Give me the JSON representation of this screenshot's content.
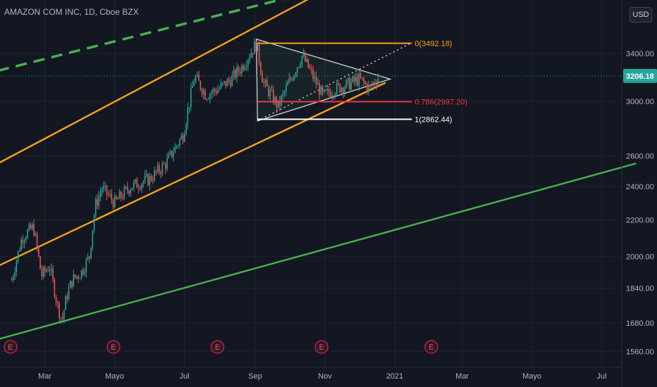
{
  "header": {
    "title": "AMAZON COM INC, 1D, Cboe BZX",
    "currency": "USD"
  },
  "price_axis": {
    "ticks": [
      "1560.00",
      "1680.00",
      "1840.00",
      "2000.00",
      "2200.00",
      "2400.00",
      "2600.00",
      "3000.00",
      "3400.00"
    ],
    "current_price_label": "3206.18"
  },
  "time_axis": {
    "ticks": [
      "Mar",
      "Mayo",
      "Jul",
      "Sep",
      "Nov",
      "2021",
      "Mar",
      "Mayo",
      "Jul"
    ]
  },
  "fib_levels": [
    {
      "label": "0(3492.18)",
      "price": 3492.18,
      "color": "#f7a21b"
    },
    {
      "label": "0.786(2997.20)",
      "price": 2997.2,
      "color": "#f23645"
    },
    {
      "label": "1(2862.44)",
      "price": 2862.44,
      "color": "#ffffff"
    }
  ],
  "earnings_markers": [
    "E",
    "E",
    "E",
    "E",
    "E"
  ],
  "colors": {
    "background": "#131722",
    "up_candle": "#26a69a",
    "down_candle": "#ef5350",
    "channel": "#f7a21b",
    "trendline_green": "#4caf50",
    "triangle": "#d1d4dc",
    "current_price": "#26a69a"
  },
  "chart_data": {
    "type": "candlestick",
    "title": "AMAZON COM INC, 1D, Cboe BZX",
    "y_scale": "log",
    "ylim": [
      1500,
      3900
    ],
    "x_range": [
      "2020-02-01",
      "2021-07-31"
    ],
    "current_price": 3206.18,
    "close_series": [
      {
        "date": "2020-02-01",
        "close": 1880
      },
      {
        "date": "2020-02-10",
        "close": 2100
      },
      {
        "date": "2020-02-20",
        "close": 2160
      },
      {
        "date": "2020-02-27",
        "close": 1900
      },
      {
        "date": "2020-03-05",
        "close": 1950
      },
      {
        "date": "2020-03-12",
        "close": 1760
      },
      {
        "date": "2020-03-16",
        "close": 1690
      },
      {
        "date": "2020-03-20",
        "close": 1800
      },
      {
        "date": "2020-03-25",
        "close": 1880
      },
      {
        "date": "2020-04-02",
        "close": 1920
      },
      {
        "date": "2020-04-09",
        "close": 2000
      },
      {
        "date": "2020-04-14",
        "close": 2280
      },
      {
        "date": "2020-04-20",
        "close": 2390
      },
      {
        "date": "2020-05-01",
        "close": 2300
      },
      {
        "date": "2020-05-15",
        "close": 2400
      },
      {
        "date": "2020-06-01",
        "close": 2450
      },
      {
        "date": "2020-06-15",
        "close": 2550
      },
      {
        "date": "2020-06-30",
        "close": 2750
      },
      {
        "date": "2020-07-10",
        "close": 3200
      },
      {
        "date": "2020-07-20",
        "close": 3050
      },
      {
        "date": "2020-07-31",
        "close": 3100
      },
      {
        "date": "2020-08-10",
        "close": 3170
      },
      {
        "date": "2020-08-20",
        "close": 3280
      },
      {
        "date": "2020-09-02",
        "close": 3490
      },
      {
        "date": "2020-09-08",
        "close": 3150
      },
      {
        "date": "2020-09-15",
        "close": 3050
      },
      {
        "date": "2020-09-21",
        "close": 2960
      },
      {
        "date": "2020-09-30",
        "close": 3140
      },
      {
        "date": "2020-10-12",
        "close": 3380
      },
      {
        "date": "2020-10-20",
        "close": 3230
      },
      {
        "date": "2020-10-30",
        "close": 3040
      },
      {
        "date": "2020-11-10",
        "close": 3100
      },
      {
        "date": "2020-11-20",
        "close": 3130
      },
      {
        "date": "2020-12-01",
        "close": 3180
      },
      {
        "date": "2020-12-10",
        "close": 3100
      },
      {
        "date": "2020-12-18",
        "close": 3206.18
      }
    ],
    "lines": [
      {
        "name": "upper channel",
        "color": "#f7a21b",
        "from": {
          "date": "2020-01-20",
          "price": 2550
        },
        "to": {
          "date": "2020-12-15",
          "price": 4300
        }
      },
      {
        "name": "lower channel",
        "color": "#f7a21b",
        "from": {
          "date": "2020-01-20",
          "price": 1950
        },
        "to": {
          "date": "2020-12-24",
          "price": 3150
        }
      },
      {
        "name": "dashed trend",
        "color": "#4caf50",
        "style": "dashed",
        "from": {
          "date": "2020-01-20",
          "price": 3250
        },
        "to": {
          "date": "2020-12-10",
          "price": 4150
        }
      },
      {
        "name": "long green trend",
        "color": "#4caf50",
        "from": {
          "date": "2020-01-20",
          "price": 1610
        },
        "to": {
          "date": "2021-07-31",
          "price": 2550
        }
      }
    ],
    "triangle": {
      "points": [
        {
          "date": "2020-09-02",
          "price": 3530
        },
        {
          "date": "2020-09-03",
          "price": 2850
        },
        {
          "date": "2020-12-28",
          "price": 3180
        }
      ]
    },
    "fib_retracement": [
      {
        "level": "0",
        "price": 3492.18
      },
      {
        "level": "0.786",
        "price": 2997.2
      },
      {
        "level": "1",
        "price": 2862.44
      }
    ],
    "earnings_dates": [
      "2020-01-31",
      "2020-04-30",
      "2020-07-30",
      "2020-10-29",
      "2021-02-02"
    ]
  }
}
